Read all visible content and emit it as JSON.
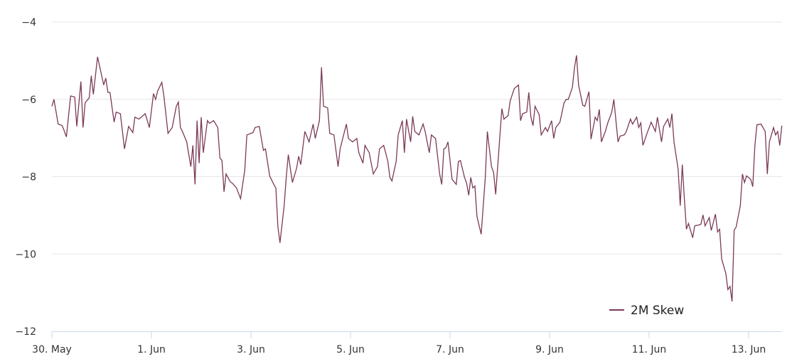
{
  "chart_data": {
    "type": "line",
    "title": "",
    "xlabel": "",
    "ylabel": "",
    "ylim": [
      -12,
      -4
    ],
    "yticks": [
      -4,
      -6,
      -8,
      -10,
      -12
    ],
    "ytick_labels": [
      "−4",
      "−6",
      "−8",
      "−10",
      "−12"
    ],
    "xlim": [
      "05-30 00:00",
      "06-13 16:00"
    ],
    "xticks": [
      "05-30 00:00",
      "06-01 00:00",
      "06-03 00:00",
      "06-05 00:00",
      "06-07 00:00",
      "06-09 00:00",
      "06-11 00:00",
      "06-13 00:00"
    ],
    "xtick_labels": [
      "30. May",
      "1. Jun",
      "3. Jun",
      "5. Jun",
      "7. Jun",
      "9. Jun",
      "11. Jun",
      "13. Jun"
    ],
    "grid": "horizontal",
    "legend": "bottom-right",
    "series": [
      {
        "name": "2M Skew",
        "color": "#7b3a58",
        "x": [
          "05-30 00:00",
          "05-30 01:00",
          "05-30 03:00",
          "05-30 05:00",
          "05-30 07:00",
          "05-30 09:00",
          "05-30 11:00",
          "05-30 12:00",
          "05-30 14:00",
          "05-30 15:00",
          "05-30 16:00",
          "05-30 18:00",
          "05-30 19:00",
          "05-30 20:00",
          "05-30 22:00",
          "05-31 01:00",
          "05-31 02:00",
          "05-31 03:00",
          "05-31 04:00",
          "05-31 06:00",
          "05-31 07:00",
          "05-31 09:00",
          "05-31 11:00",
          "05-31 13:00",
          "05-31 15:00",
          "05-31 16:00",
          "05-31 18:00",
          "05-31 21:00",
          "05-31 23:00",
          "06-01 01:00",
          "06-01 02:00",
          "06-01 03:00",
          "06-01 05:00",
          "06-01 06:00",
          "06-01 08:00",
          "06-01 10:00",
          "06-01 12:00",
          "06-01 13:00",
          "06-01 14:00",
          "06-01 15:00",
          "06-01 17:00",
          "06-01 19:00",
          "06-01 20:00",
          "06-01 21:00",
          "06-01 22:00",
          "06-01 23:00",
          "06-02 00:00",
          "06-02 01:00",
          "06-02 03:00",
          "06-02 04:00",
          "06-02 06:00",
          "06-02 08:00",
          "06-02 09:00",
          "06-02 10:00",
          "06-02 11:00",
          "06-02 12:00",
          "06-02 14:00",
          "06-02 15:00",
          "06-02 17:00",
          "06-02 19:00",
          "06-02 21:00",
          "06-02 22:00",
          "06-03 01:00",
          "06-03 02:00",
          "06-03 04:00",
          "06-03 06:00",
          "06-03 07:00",
          "06-03 09:00",
          "06-03 11:00",
          "06-03 12:00",
          "06-03 13:00",
          "06-03 14:00",
          "06-03 16:00",
          "06-03 17:00",
          "06-03 18:00",
          "06-03 20:00",
          "06-03 22:00",
          "06-03 23:00",
          "06-04 00:00",
          "06-04 02:00",
          "06-04 04:00",
          "06-04 06:00",
          "06-04 07:00",
          "06-04 09:00",
          "06-04 10:00",
          "06-04 11:00",
          "06-04 13:00",
          "06-04 14:00",
          "06-04 16:00",
          "06-04 18:00",
          "06-04 19:00",
          "06-04 22:00",
          "06-04 23:00",
          "06-05 01:00",
          "06-05 03:00",
          "06-05 04:00",
          "06-05 06:00",
          "06-05 07:00",
          "06-05 09:00",
          "06-05 11:00",
          "06-05 13:00",
          "06-05 14:00",
          "06-05 16:00",
          "06-05 18:00",
          "06-05 19:00",
          "06-05 20:00",
          "06-05 22:00",
          "06-05 23:00",
          "06-06 01:00",
          "06-06 02:00",
          "06-06 03:00",
          "06-06 05:00",
          "06-06 06:00",
          "06-06 07:00",
          "06-06 09:00",
          "06-06 11:00",
          "06-06 12:00",
          "06-06 14:00",
          "06-06 15:00",
          "06-06 17:00",
          "06-06 19:00",
          "06-06 20:00",
          "06-06 21:00",
          "06-06 22:00",
          "06-06 23:00",
          "06-07 01:00",
          "06-07 03:00",
          "06-07 04:00",
          "06-07 05:00",
          "06-07 07:00",
          "06-07 08:00",
          "06-07 09:00",
          "06-07 10:00",
          "06-07 11:00",
          "06-07 12:00",
          "06-07 13:00",
          "06-07 15:00",
          "06-07 17:00",
          "06-07 18:00",
          "06-07 20:00",
          "06-07 21:00",
          "06-07 22:00",
          "06-08 01:00",
          "06-08 02:00",
          "06-08 04:00",
          "06-08 05:00",
          "06-08 07:00",
          "06-08 09:00",
          "06-08 10:00",
          "06-08 11:00",
          "06-08 13:00",
          "06-08 14:00",
          "06-08 15:00",
          "06-08 16:00",
          "06-08 17:00",
          "06-08 19:00",
          "06-08 20:00",
          "06-08 22:00",
          "06-08 23:00",
          "06-09 01:00",
          "06-09 02:00",
          "06-09 03:00",
          "06-09 05:00",
          "06-09 07:00",
          "06-09 08:00",
          "06-09 09:00",
          "06-09 11:00",
          "06-09 12:00",
          "06-09 13:00",
          "06-09 14:00",
          "06-09 16:00",
          "06-09 17:00",
          "06-09 19:00",
          "06-09 20:00",
          "06-09 22:00",
          "06-09 23:00",
          "06-10 00:00",
          "06-10 01:00",
          "06-10 03:00",
          "06-10 04:00",
          "06-10 06:00",
          "06-10 07:00",
          "06-10 09:00",
          "06-10 10:00",
          "06-10 12:00",
          "06-10 13:00",
          "06-10 15:00",
          "06-10 16:00",
          "06-10 18:00",
          "06-10 19:00",
          "06-10 20:00",
          "06-10 21:00",
          "06-10 23:00",
          "06-11 01:00",
          "06-11 03:00",
          "06-11 04:00",
          "06-11 06:00",
          "06-11 07:00",
          "06-11 09:00",
          "06-11 10:00",
          "06-11 11:00",
          "06-11 12:00",
          "06-11 14:00",
          "06-11 15:00",
          "06-11 16:00",
          "06-11 17:00",
          "06-11 18:00",
          "06-11 19:00",
          "06-11 21:00",
          "06-11 22:00",
          "06-12 00:00",
          "06-12 01:00",
          "06-12 02:00",
          "06-12 03:00",
          "06-12 05:00",
          "06-12 06:00",
          "06-12 08:00",
          "06-12 09:00",
          "06-12 10:00",
          "06-12 11:00",
          "06-12 13:00",
          "06-12 14:00",
          "06-12 15:00",
          "06-12 16:00",
          "06-12 17:00",
          "06-12 18:00",
          "06-12 20:00",
          "06-12 21:00",
          "06-12 22:00",
          "06-12 23:00",
          "06-13 01:00",
          "06-13 02:00",
          "06-13 03:00",
          "06-13 04:00",
          "06-13 06:00",
          "06-13 08:00",
          "06-13 09:00",
          "06-13 10:00",
          "06-13 12:00",
          "06-13 13:00",
          "06-13 14:00",
          "06-13 15:00",
          "06-13 16:00"
        ],
        "y": [
          -6.18,
          -6.0,
          -6.64,
          -6.68,
          -6.97,
          -5.91,
          -5.94,
          -6.7,
          -5.54,
          -6.73,
          -6.09,
          -5.96,
          -5.39,
          -5.87,
          -4.9,
          -5.63,
          -5.45,
          -5.82,
          -5.82,
          -6.59,
          -6.33,
          -6.37,
          -7.28,
          -6.7,
          -6.86,
          -6.46,
          -6.51,
          -6.37,
          -6.73,
          -5.85,
          -6.0,
          -5.78,
          -5.56,
          -5.91,
          -6.88,
          -6.73,
          -6.18,
          -6.07,
          -6.73,
          -6.84,
          -7.1,
          -7.74,
          -7.19,
          -8.2,
          -6.55,
          -7.65,
          -6.46,
          -7.38,
          -6.55,
          -6.62,
          -6.55,
          -6.73,
          -7.52,
          -7.58,
          -8.39,
          -7.93,
          -8.13,
          -8.17,
          -8.29,
          -8.57,
          -7.83,
          -6.92,
          -6.86,
          -6.73,
          -6.7,
          -7.32,
          -7.28,
          -7.98,
          -8.2,
          -8.29,
          -9.3,
          -9.71,
          -8.75,
          -8.02,
          -7.43,
          -8.15,
          -7.78,
          -7.47,
          -7.69,
          -6.83,
          -7.1,
          -6.64,
          -7.01,
          -6.55,
          -5.17,
          -6.18,
          -6.22,
          -6.88,
          -6.92,
          -7.74,
          -7.28,
          -6.64,
          -7.01,
          -7.1,
          -7.01,
          -7.38,
          -7.65,
          -7.19,
          -7.38,
          -7.93,
          -7.74,
          -7.28,
          -7.19,
          -7.6,
          -8.02,
          -8.11,
          -7.61,
          -6.92,
          -6.55,
          -7.38,
          -6.51,
          -7.1,
          -6.44,
          -6.83,
          -6.92,
          -6.64,
          -6.83,
          -7.38,
          -6.92,
          -7.01,
          -7.93,
          -8.2,
          -7.28,
          -7.25,
          -7.1,
          -8.07,
          -8.2,
          -7.61,
          -7.58,
          -8.02,
          -8.17,
          -8.48,
          -8.02,
          -8.29,
          -8.24,
          -9.03,
          -9.49,
          -8.02,
          -6.83,
          -7.74,
          -7.89,
          -8.46,
          -6.24,
          -6.51,
          -6.42,
          -6.04,
          -5.72,
          -5.63,
          -6.55,
          -6.37,
          -6.33,
          -5.82,
          -6.46,
          -6.68,
          -6.18,
          -6.4,
          -6.92,
          -6.73,
          -6.83,
          -6.55,
          -7.01,
          -6.73,
          -6.59,
          -6.09,
          -6.0,
          -6.0,
          -5.69,
          -5.19,
          -4.86,
          -5.63,
          -6.15,
          -6.18,
          -5.8,
          -7.03,
          -6.46,
          -6.55,
          -6.26,
          -7.1,
          -6.81,
          -6.62,
          -6.33,
          -6.0,
          -7.1,
          -6.95,
          -6.92,
          -6.83,
          -6.51,
          -6.64,
          -6.46,
          -6.73,
          -6.61,
          -7.19,
          -6.88,
          -6.59,
          -6.83,
          -6.46,
          -7.1,
          -6.7,
          -6.51,
          -6.73,
          -6.37,
          -7.1,
          -7.8,
          -8.75,
          -7.69,
          -8.57,
          -9.36,
          -9.21,
          -9.58,
          -9.27,
          -9.25,
          -9.23,
          -8.99,
          -9.27,
          -9.06,
          -9.39,
          -8.97,
          -9.43,
          -9.36,
          -10.13,
          -10.5,
          -10.92,
          -10.84,
          -11.23,
          -9.39,
          -9.3,
          -8.75,
          -7.93,
          -8.15,
          -7.98,
          -8.07,
          -8.26,
          -7.19,
          -6.66,
          -6.64,
          -6.83,
          -7.93,
          -7.1,
          -6.73,
          -6.92,
          -6.83,
          -7.19,
          -6.68
        ]
      }
    ]
  }
}
